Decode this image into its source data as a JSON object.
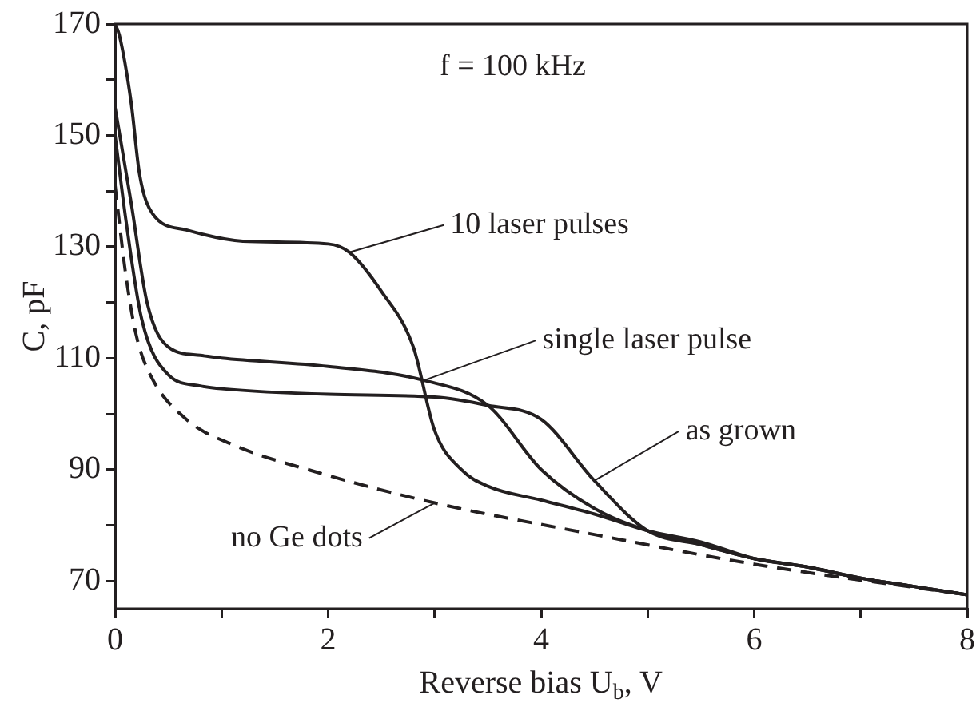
{
  "chart_data": {
    "type": "line",
    "xlabel": "Reverse bias U$_{b}$, V",
    "ylabel": "C, pF",
    "annotations": [
      "f = 100 kHz"
    ],
    "xlim": [
      0,
      8
    ],
    "xticks": [
      0,
      {
        "value": 1,
        "label": null
      },
      2,
      {
        "value": 3,
        "label": null
      },
      4,
      {
        "value": 5,
        "label": null
      },
      6,
      {
        "value": 7,
        "label": null
      },
      8
    ],
    "ylim": [
      65,
      170
    ],
    "yticks": [
      70,
      {
        "value": 80,
        "label": null
      },
      90,
      {
        "value": 100,
        "label": null
      },
      110,
      {
        "value": 120,
        "label": null
      },
      130,
      {
        "value": 140,
        "label": null
      },
      150,
      {
        "value": 160,
        "label": null
      },
      170
    ],
    "grid": false,
    "legend": "right",
    "marker": "none",
    "series": [
      {
        "name": "10 laser pulses",
        "color": "#231f20",
        "line_style": "solid",
        "x": [
          0,
          0.04,
          0.15,
          0.23,
          0.35,
          0.67,
          1.2,
          2,
          2.2,
          2.5,
          2.8,
          3,
          3.25,
          3.5,
          4,
          4.5,
          5,
          5.5,
          6,
          6.5,
          7,
          7.5,
          8
        ],
        "values": [
          170,
          168,
          156,
          143,
          136,
          133,
          131,
          130.5,
          129,
          122,
          112,
          97,
          90,
          87,
          84.5,
          82,
          79,
          77,
          74,
          72.5,
          70.5,
          69,
          67.5
        ]
      },
      {
        "name": "single laser pulse",
        "color": "#231f20",
        "line_style": "solid",
        "x": [
          0,
          0.15,
          0.3,
          0.5,
          0.8,
          1,
          2,
          2.9,
          3.5,
          4,
          4.5,
          5,
          5.5,
          6,
          6.5,
          7,
          7.5,
          8
        ],
        "values": [
          155,
          138,
          120,
          112,
          110.5,
          110,
          108.5,
          106,
          101.5,
          90,
          83,
          79,
          76.5,
          74,
          72.5,
          70.5,
          69,
          67.5
        ]
      },
      {
        "name": "as grown",
        "color": "#231f20",
        "line_style": "solid",
        "x": [
          0,
          0.1,
          0.25,
          0.5,
          0.8,
          1,
          2,
          3,
          3.5,
          4,
          4.5,
          5,
          5.5,
          6,
          6.5,
          7,
          7.5,
          8
        ],
        "values": [
          150,
          135,
          117,
          107,
          105,
          104.5,
          103.5,
          103,
          101.5,
          99,
          88,
          79,
          76.5,
          74,
          72.5,
          70.5,
          69,
          67.5
        ]
      },
      {
        "name": "no Ge dots",
        "color": "#231f20",
        "line_style": "dashed",
        "x": [
          0,
          0.1,
          0.2,
          0.33,
          0.67,
          1.1,
          1.88,
          3,
          4.45,
          6,
          8
        ],
        "values": [
          141,
          125,
          114,
          107,
          99,
          94.5,
          89.6,
          84,
          78.5,
          73,
          67.5
        ]
      }
    ]
  }
}
